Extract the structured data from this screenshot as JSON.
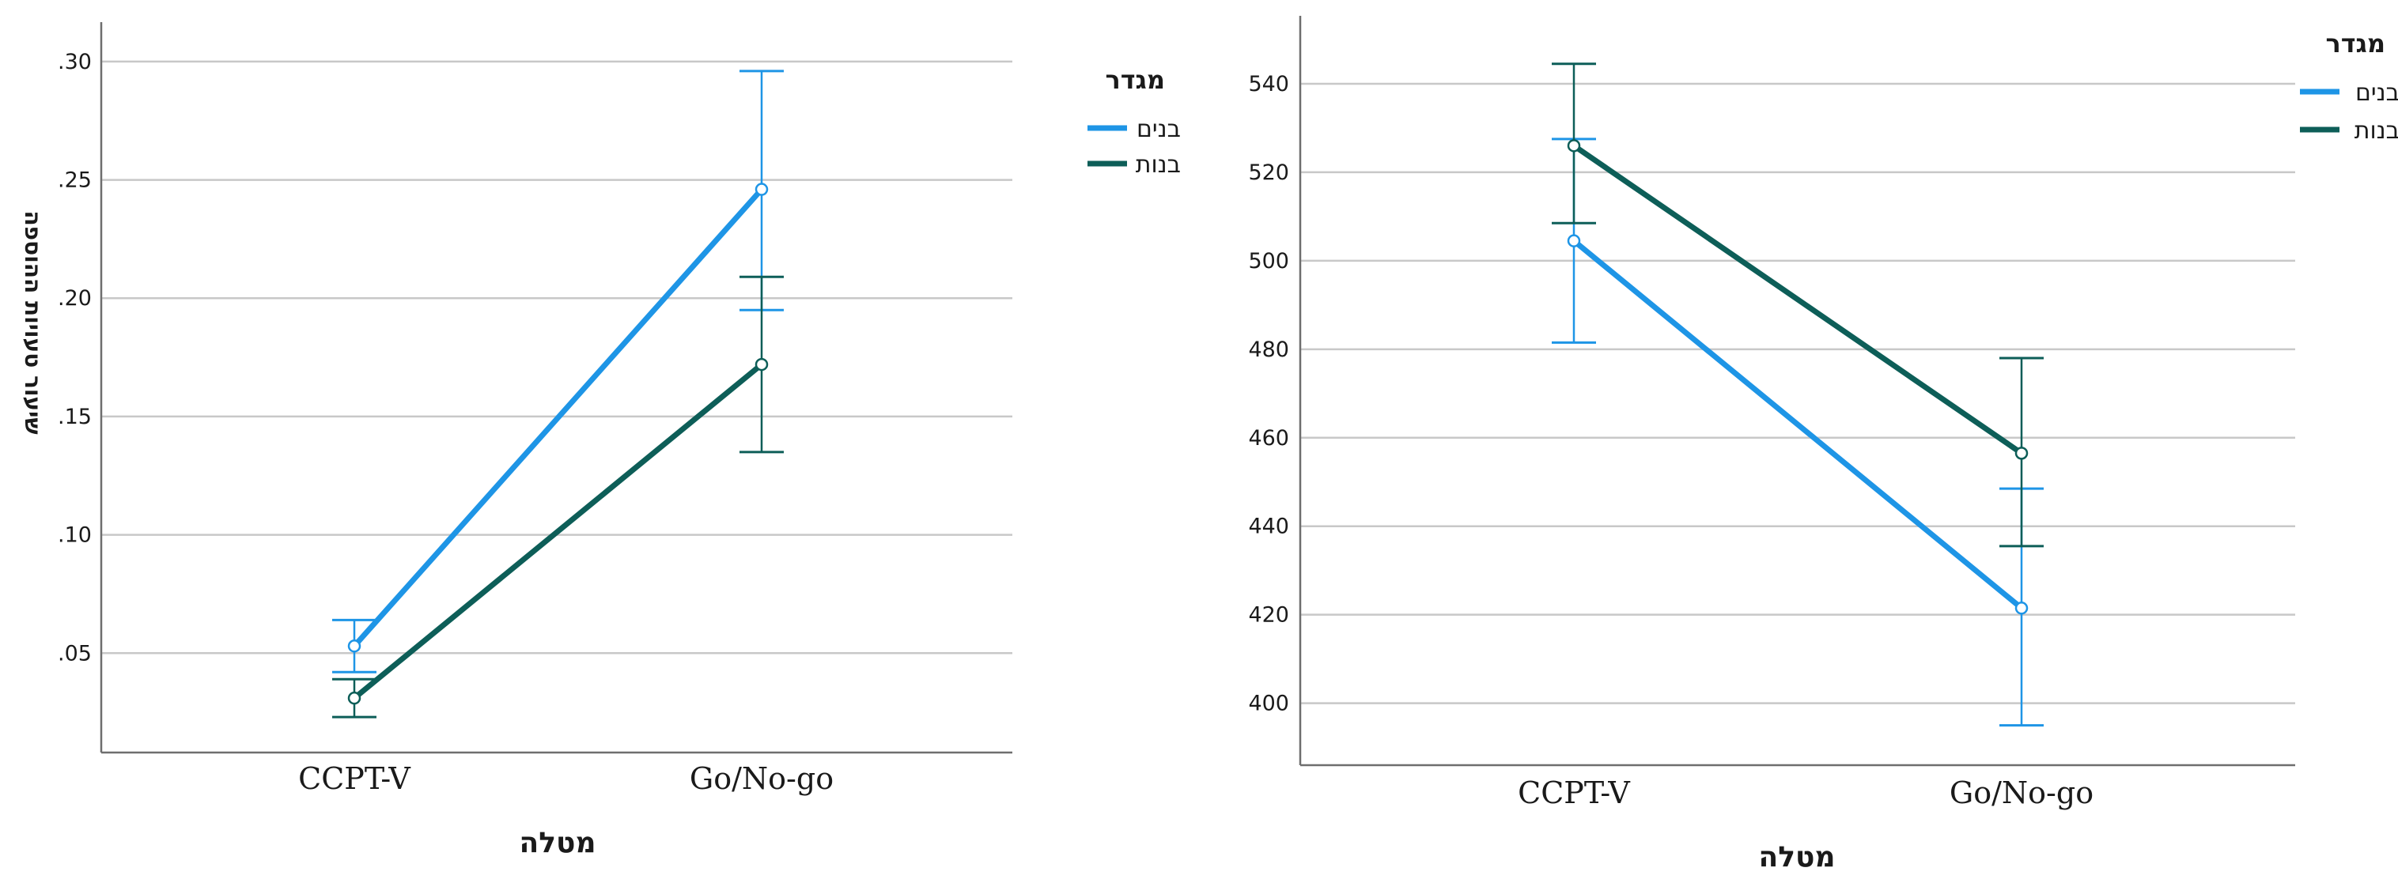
{
  "colors": {
    "boys": "#1e95e6",
    "girls": "#0d5e58",
    "grid": "#c8c8c8",
    "axis": "#6e6e6e"
  },
  "chart_data": [
    {
      "type": "line",
      "title": "",
      "xlabel": "מטלה",
      "ylabel": "שיעור טעויות ההוספה",
      "categories": [
        "CCPT-V",
        "Go/No-go"
      ],
      "ylim": [
        0.008,
        0.316
      ],
      "yticks": [
        ".05",
        ".10",
        ".15",
        ".20",
        ".25",
        ".30"
      ],
      "ytick_values": [
        0.05,
        0.1,
        0.15,
        0.2,
        0.25,
        0.3
      ],
      "grid": true,
      "legend_title": "מגדר",
      "legend_position": "right",
      "series": [
        {
          "name": "בנים",
          "color": "#1e95e6",
          "values": [
            0.053,
            0.246
          ],
          "err_low": [
            0.042,
            0.195
          ],
          "err_high": [
            0.064,
            0.296
          ]
        },
        {
          "name": "בנות",
          "color": "#0d5e58",
          "values": [
            0.031,
            0.172
          ],
          "err_low": [
            0.023,
            0.135
          ],
          "err_high": [
            0.039,
            0.209
          ]
        }
      ]
    },
    {
      "type": "line",
      "title": "",
      "xlabel": "מטלה",
      "ylabel": "",
      "categories": [
        "CCPT-V",
        "Go/No-go"
      ],
      "ylim": [
        386,
        555
      ],
      "yticks": [
        "400",
        "420",
        "440",
        "460",
        "480",
        "500",
        "520",
        "540"
      ],
      "ytick_values": [
        400,
        420,
        440,
        460,
        480,
        500,
        520,
        540
      ],
      "grid": true,
      "legend_title": "מגדר",
      "legend_position": "right",
      "series": [
        {
          "name": "בנים",
          "color": "#1e95e6",
          "values": [
            504.5,
            421.5
          ],
          "err_low": [
            481.5,
            395
          ],
          "err_high": [
            527.5,
            448.5
          ]
        },
        {
          "name": "בנות",
          "color": "#0d5e58",
          "values": [
            526,
            456.5
          ],
          "err_low": [
            508.5,
            435.5
          ],
          "err_high": [
            544.5,
            478
          ]
        }
      ]
    }
  ]
}
